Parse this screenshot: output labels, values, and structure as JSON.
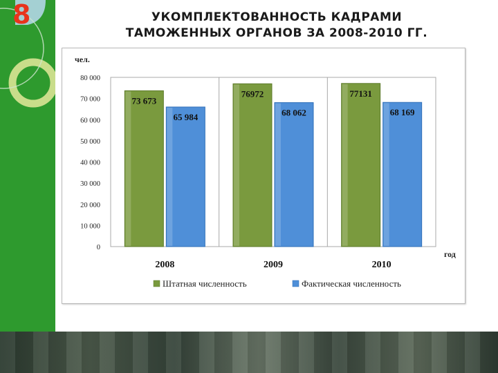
{
  "slide": {
    "number": "8",
    "title_line1": "УКОМПЛЕКТОВАННОСТЬ КАДРАМИ",
    "title_line2": "ТАМОЖЕННЫХ ОРГАНОВ ЗА 2008-2010 ГГ."
  },
  "colors": {
    "sidebar": "#2e9a2e",
    "series1": "#7a9a3e",
    "series2": "#4f8fd8",
    "number": "#e8341c"
  },
  "chart_data": {
    "type": "bar",
    "categories": [
      "2008",
      "2009",
      "2010"
    ],
    "series": [
      {
        "name": "Штатная численность",
        "values": [
          73673,
          76972,
          77131
        ],
        "labels": [
          "73 673",
          "76972",
          "77131"
        ]
      },
      {
        "name": "Фактическая численность",
        "values": [
          65984,
          68062,
          68169
        ],
        "labels": [
          "65 984",
          "68 062",
          "68 169"
        ]
      }
    ],
    "ylabel": "чел.",
    "xlabel": "год",
    "ylim": [
      0,
      80000
    ],
    "yticks": [
      0,
      10000,
      20000,
      30000,
      40000,
      50000,
      60000,
      70000,
      80000
    ],
    "ytick_labels": [
      "0",
      "10 000",
      "20 000",
      "30 000",
      "40 000",
      "50 000",
      "60 000",
      "70 000",
      "80 000"
    ],
    "grid": "vertical separators between categories",
    "legend_position": "bottom"
  }
}
